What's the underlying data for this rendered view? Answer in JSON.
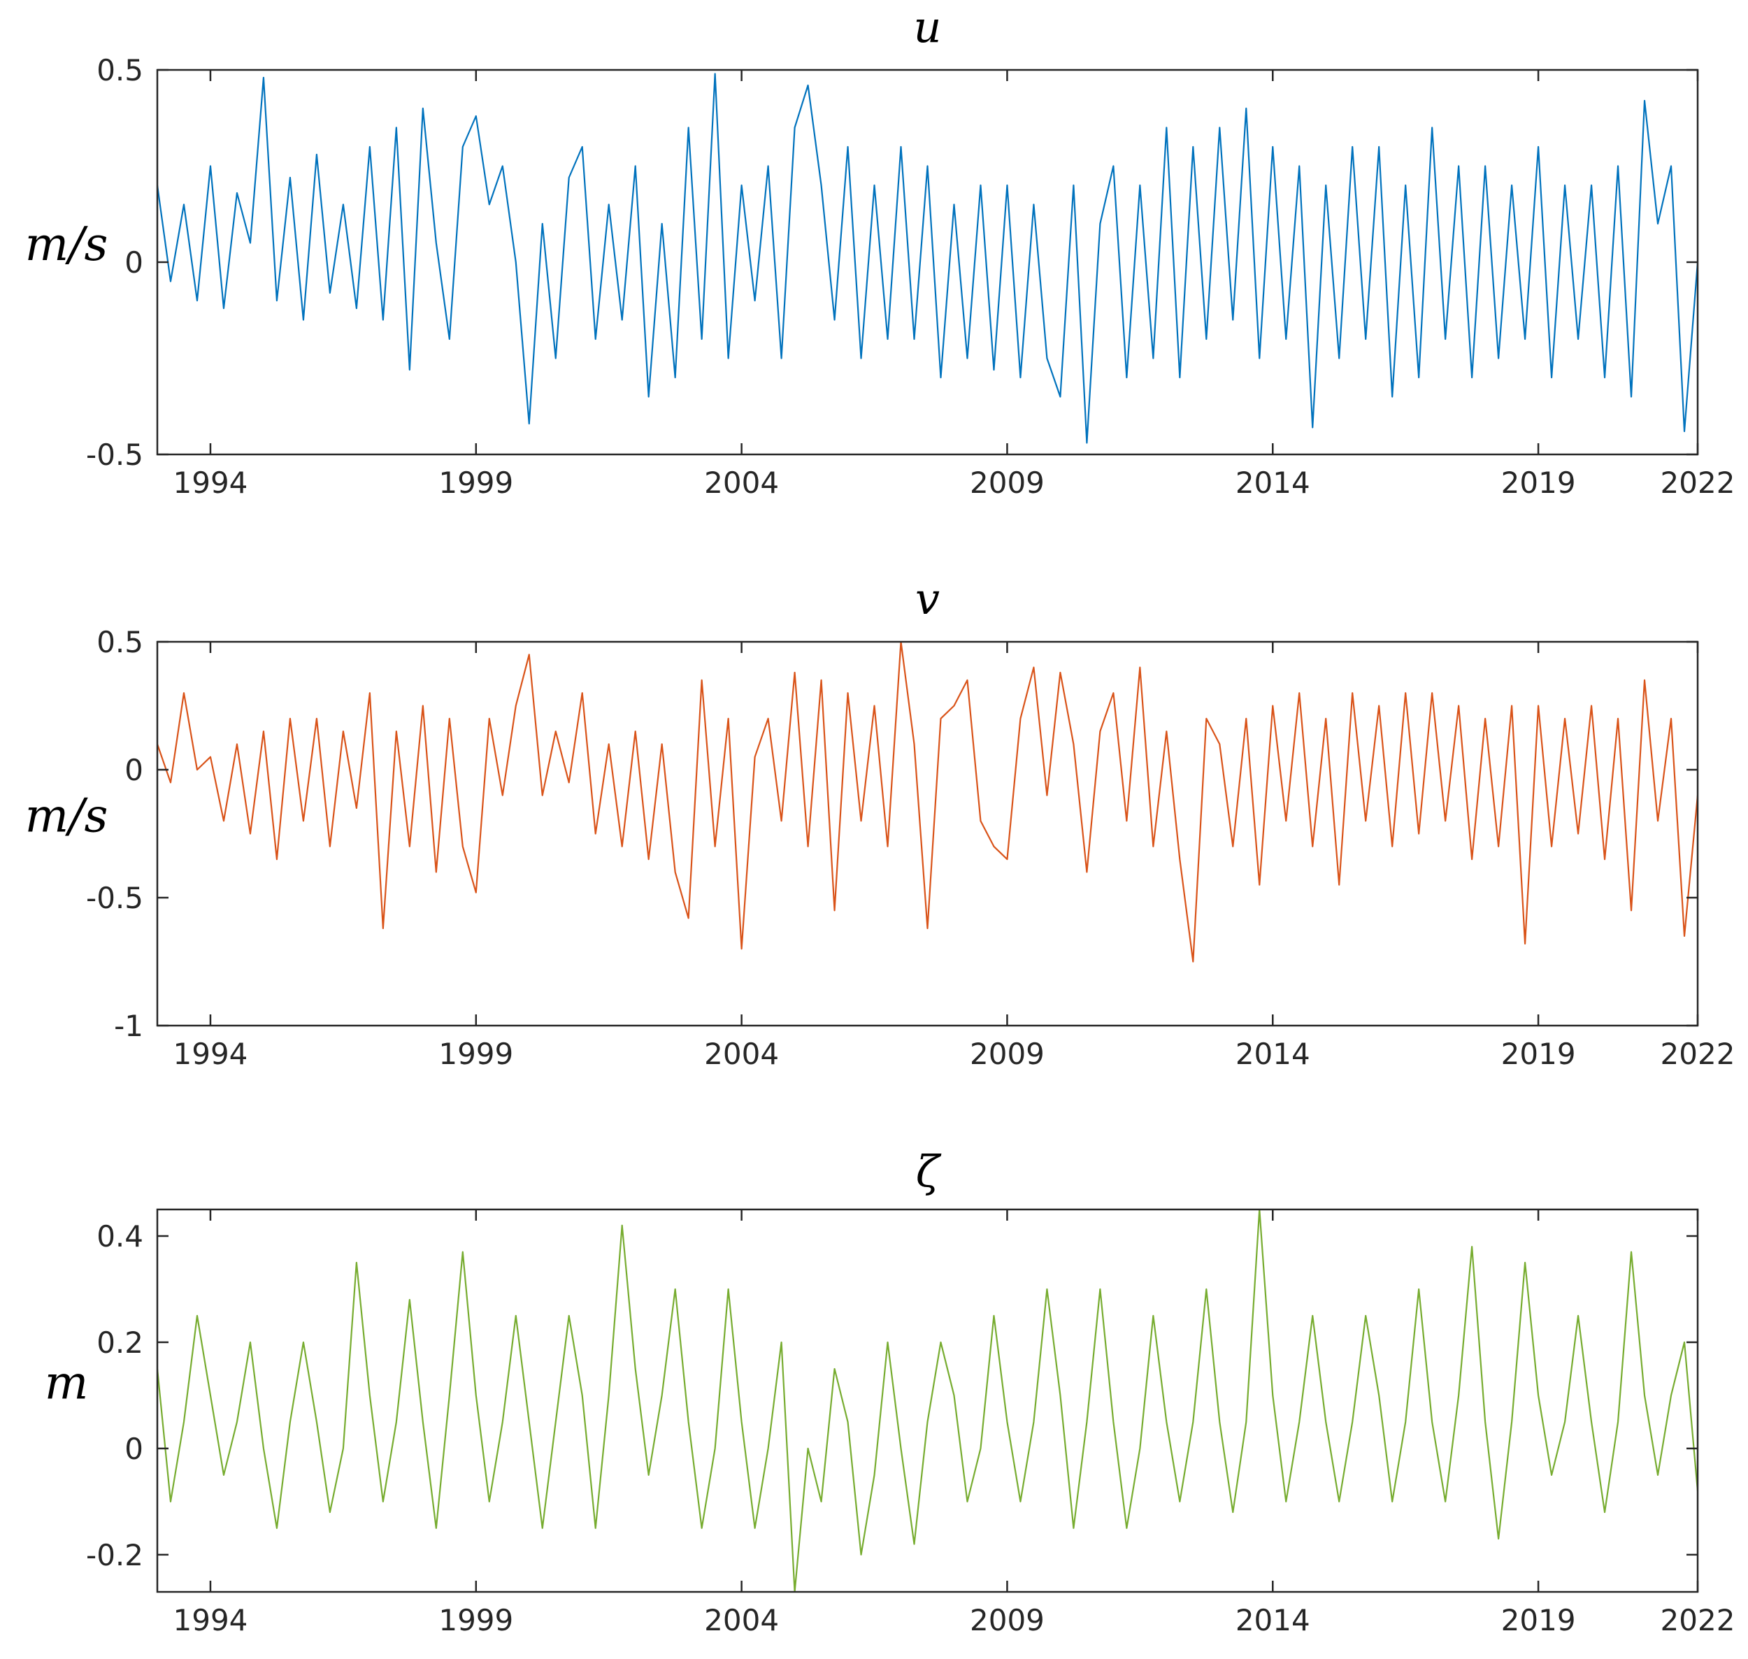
{
  "chart_data": [
    {
      "type": "line",
      "title": "u",
      "ylabel": "m/s",
      "color": "#0072bd",
      "x": [
        1993,
        1993.25,
        1993.5,
        1993.75,
        1994,
        1994.25,
        1994.5,
        1994.75,
        1995,
        1995.25,
        1995.5,
        1995.75,
        1996,
        1996.25,
        1996.5,
        1996.75,
        1997,
        1997.25,
        1997.5,
        1997.75,
        1998,
        1998.25,
        1998.5,
        1998.75,
        1999,
        1999.25,
        1999.5,
        1999.75,
        2000,
        2000.25,
        2000.5,
        2000.75,
        2001,
        2001.25,
        2001.5,
        2001.75,
        2002,
        2002.25,
        2002.5,
        2002.75,
        2003,
        2003.25,
        2003.5,
        2003.75,
        2004,
        2004.25,
        2004.5,
        2004.75,
        2005,
        2005.25,
        2005.5,
        2005.75,
        2006,
        2006.25,
        2006.5,
        2006.75,
        2007,
        2007.25,
        2007.5,
        2007.75,
        2008,
        2008.25,
        2008.5,
        2008.75,
        2009,
        2009.25,
        2009.5,
        2009.75,
        2010,
        2010.25,
        2010.5,
        2010.75,
        2011,
        2011.25,
        2011.5,
        2011.75,
        2012,
        2012.25,
        2012.5,
        2012.75,
        2013,
        2013.25,
        2013.5,
        2013.75,
        2014,
        2014.25,
        2014.5,
        2014.75,
        2015,
        2015.25,
        2015.5,
        2015.75,
        2016,
        2016.25,
        2016.5,
        2016.75,
        2017,
        2017.25,
        2017.5,
        2017.75,
        2018,
        2018.25,
        2018.5,
        2018.75,
        2019,
        2019.25,
        2019.5,
        2019.75,
        2020,
        2020.25,
        2020.5,
        2020.75,
        2021,
        2021.25,
        2021.5,
        2021.75,
        2022
      ],
      "values": [
        0.2,
        -0.05,
        0.15,
        -0.1,
        0.25,
        -0.12,
        0.18,
        0.05,
        0.48,
        -0.1,
        0.22,
        -0.15,
        0.28,
        -0.08,
        0.15,
        -0.12,
        0.3,
        -0.15,
        0.35,
        -0.28,
        0.4,
        0.05,
        -0.2,
        0.3,
        0.38,
        0.15,
        0.25,
        0.0,
        -0.42,
        0.1,
        -0.25,
        0.22,
        0.3,
        -0.2,
        0.15,
        -0.15,
        0.25,
        -0.35,
        0.1,
        -0.3,
        0.35,
        -0.2,
        0.49,
        -0.25,
        0.2,
        -0.1,
        0.25,
        -0.25,
        0.35,
        0.46,
        0.2,
        -0.15,
        0.3,
        -0.25,
        0.2,
        -0.2,
        0.3,
        -0.2,
        0.25,
        -0.3,
        0.15,
        -0.25,
        0.2,
        -0.28,
        0.2,
        -0.3,
        0.15,
        -0.25,
        -0.35,
        0.2,
        -0.47,
        0.1,
        0.25,
        -0.3,
        0.2,
        -0.25,
        0.35,
        -0.3,
        0.3,
        -0.2,
        0.35,
        -0.15,
        0.4,
        -0.25,
        0.3,
        -0.2,
        0.25,
        -0.43,
        0.2,
        -0.25,
        0.3,
        -0.2,
        0.3,
        -0.35,
        0.2,
        -0.3,
        0.35,
        -0.2,
        0.25,
        -0.3,
        0.25,
        -0.25,
        0.2,
        -0.2,
        0.3,
        -0.3,
        0.2,
        -0.2,
        0.2,
        -0.3,
        0.25,
        -0.35,
        0.42,
        0.1,
        0.25,
        -0.44,
        0.0
      ],
      "xlim": [
        1993,
        2022
      ],
      "xticks": [
        1994,
        1999,
        2004,
        2009,
        2014,
        2019,
        2022
      ],
      "ylim": [
        -0.5,
        0.5
      ],
      "yticks": [
        -0.5,
        0,
        0.5
      ]
    },
    {
      "type": "line",
      "title": "v",
      "ylabel": "m/s",
      "color": "#d95319",
      "x": [
        1993,
        1993.25,
        1993.5,
        1993.75,
        1994,
        1994.25,
        1994.5,
        1994.75,
        1995,
        1995.25,
        1995.5,
        1995.75,
        1996,
        1996.25,
        1996.5,
        1996.75,
        1997,
        1997.25,
        1997.5,
        1997.75,
        1998,
        1998.25,
        1998.5,
        1998.75,
        1999,
        1999.25,
        1999.5,
        1999.75,
        2000,
        2000.25,
        2000.5,
        2000.75,
        2001,
        2001.25,
        2001.5,
        2001.75,
        2002,
        2002.25,
        2002.5,
        2002.75,
        2003,
        2003.25,
        2003.5,
        2003.75,
        2004,
        2004.25,
        2004.5,
        2004.75,
        2005,
        2005.25,
        2005.5,
        2005.75,
        2006,
        2006.25,
        2006.5,
        2006.75,
        2007,
        2007.25,
        2007.5,
        2007.75,
        2008,
        2008.25,
        2008.5,
        2008.75,
        2009,
        2009.25,
        2009.5,
        2009.75,
        2010,
        2010.25,
        2010.5,
        2010.75,
        2011,
        2011.25,
        2011.5,
        2011.75,
        2012,
        2012.25,
        2012.5,
        2012.75,
        2013,
        2013.25,
        2013.5,
        2013.75,
        2014,
        2014.25,
        2014.5,
        2014.75,
        2015,
        2015.25,
        2015.5,
        2015.75,
        2016,
        2016.25,
        2016.5,
        2016.75,
        2017,
        2017.25,
        2017.5,
        2017.75,
        2018,
        2018.25,
        2018.5,
        2018.75,
        2019,
        2019.25,
        2019.5,
        2019.75,
        2020,
        2020.25,
        2020.5,
        2020.75,
        2021,
        2021.25,
        2021.5,
        2021.75,
        2022
      ],
      "values": [
        0.1,
        -0.05,
        0.3,
        0.0,
        0.05,
        -0.2,
        0.1,
        -0.25,
        0.15,
        -0.35,
        0.2,
        -0.2,
        0.2,
        -0.3,
        0.15,
        -0.15,
        0.3,
        -0.62,
        0.15,
        -0.3,
        0.25,
        -0.4,
        0.2,
        -0.3,
        -0.48,
        0.2,
        -0.1,
        0.25,
        0.45,
        -0.1,
        0.15,
        -0.05,
        0.3,
        -0.25,
        0.1,
        -0.3,
        0.15,
        -0.35,
        0.1,
        -0.4,
        -0.58,
        0.35,
        -0.3,
        0.2,
        -0.7,
        0.05,
        0.2,
        -0.2,
        0.38,
        -0.3,
        0.35,
        -0.55,
        0.3,
        -0.2,
        0.25,
        -0.3,
        0.5,
        0.1,
        -0.62,
        0.2,
        0.25,
        0.35,
        -0.2,
        -0.3,
        -0.35,
        0.2,
        0.4,
        -0.1,
        0.38,
        0.1,
        -0.4,
        0.15,
        0.3,
        -0.2,
        0.4,
        -0.3,
        0.15,
        -0.35,
        -0.75,
        0.2,
        0.1,
        -0.3,
        0.2,
        -0.45,
        0.25,
        -0.2,
        0.3,
        -0.3,
        0.2,
        -0.45,
        0.3,
        -0.2,
        0.25,
        -0.3,
        0.3,
        -0.25,
        0.3,
        -0.2,
        0.25,
        -0.35,
        0.2,
        -0.3,
        0.25,
        -0.68,
        0.25,
        -0.3,
        0.2,
        -0.25,
        0.25,
        -0.35,
        0.2,
        -0.55,
        0.35,
        -0.2,
        0.2,
        -0.65,
        -0.1
      ],
      "xlim": [
        1993,
        2022
      ],
      "xticks": [
        1994,
        1999,
        2004,
        2009,
        2014,
        2019,
        2022
      ],
      "ylim": [
        -1,
        0.5
      ],
      "yticks": [
        -1,
        -0.5,
        0,
        0.5
      ]
    },
    {
      "type": "line",
      "title": "ζ",
      "ylabel": "m",
      "color": "#77ac30",
      "x": [
        1993,
        1993.25,
        1993.5,
        1993.75,
        1994,
        1994.25,
        1994.5,
        1994.75,
        1995,
        1995.25,
        1995.5,
        1995.75,
        1996,
        1996.25,
        1996.5,
        1996.75,
        1997,
        1997.25,
        1997.5,
        1997.75,
        1998,
        1998.25,
        1998.5,
        1998.75,
        1999,
        1999.25,
        1999.5,
        1999.75,
        2000,
        2000.25,
        2000.5,
        2000.75,
        2001,
        2001.25,
        2001.5,
        2001.75,
        2002,
        2002.25,
        2002.5,
        2002.75,
        2003,
        2003.25,
        2003.5,
        2003.75,
        2004,
        2004.25,
        2004.5,
        2004.75,
        2005,
        2005.25,
        2005.5,
        2005.75,
        2006,
        2006.25,
        2006.5,
        2006.75,
        2007,
        2007.25,
        2007.5,
        2007.75,
        2008,
        2008.25,
        2008.5,
        2008.75,
        2009,
        2009.25,
        2009.5,
        2009.75,
        2010,
        2010.25,
        2010.5,
        2010.75,
        2011,
        2011.25,
        2011.5,
        2011.75,
        2012,
        2012.25,
        2012.5,
        2012.75,
        2013,
        2013.25,
        2013.5,
        2013.75,
        2014,
        2014.25,
        2014.5,
        2014.75,
        2015,
        2015.25,
        2015.5,
        2015.75,
        2016,
        2016.25,
        2016.5,
        2016.75,
        2017,
        2017.25,
        2017.5,
        2017.75,
        2018,
        2018.25,
        2018.5,
        2018.75,
        2019,
        2019.25,
        2019.5,
        2019.75,
        2020,
        2020.25,
        2020.5,
        2020.75,
        2021,
        2021.25,
        2021.5,
        2021.75,
        2022
      ],
      "values": [
        0.15,
        -0.1,
        0.05,
        0.25,
        0.1,
        -0.05,
        0.05,
        0.2,
        0.0,
        -0.15,
        0.05,
        0.2,
        0.05,
        -0.12,
        0.0,
        0.35,
        0.1,
        -0.1,
        0.05,
        0.28,
        0.05,
        -0.15,
        0.1,
        0.37,
        0.1,
        -0.1,
        0.05,
        0.25,
        0.05,
        -0.15,
        0.05,
        0.25,
        0.1,
        -0.15,
        0.1,
        0.42,
        0.15,
        -0.05,
        0.1,
        0.3,
        0.05,
        -0.15,
        0.0,
        0.3,
        0.05,
        -0.15,
        0.0,
        0.2,
        -0.27,
        0.0,
        -0.1,
        0.15,
        0.05,
        -0.2,
        -0.05,
        0.2,
        0.0,
        -0.18,
        0.05,
        0.2,
        0.1,
        -0.1,
        0.0,
        0.25,
        0.05,
        -0.1,
        0.05,
        0.3,
        0.1,
        -0.15,
        0.05,
        0.3,
        0.05,
        -0.15,
        0.0,
        0.25,
        0.05,
        -0.1,
        0.05,
        0.3,
        0.05,
        -0.12,
        0.05,
        0.45,
        0.1,
        -0.1,
        0.05,
        0.25,
        0.05,
        -0.1,
        0.05,
        0.25,
        0.1,
        -0.1,
        0.05,
        0.3,
        0.05,
        -0.1,
        0.1,
        0.38,
        0.05,
        -0.17,
        0.05,
        0.35,
        0.1,
        -0.05,
        0.05,
        0.25,
        0.05,
        -0.12,
        0.05,
        0.37,
        0.1,
        -0.05,
        0.1,
        0.2,
        -0.08
      ],
      "xlim": [
        1993,
        2022
      ],
      "xticks": [
        1994,
        1999,
        2004,
        2009,
        2014,
        2019,
        2022
      ],
      "ylim": [
        -0.27,
        0.45
      ],
      "yticks": [
        -0.2,
        0,
        0.2,
        0.4
      ]
    }
  ]
}
